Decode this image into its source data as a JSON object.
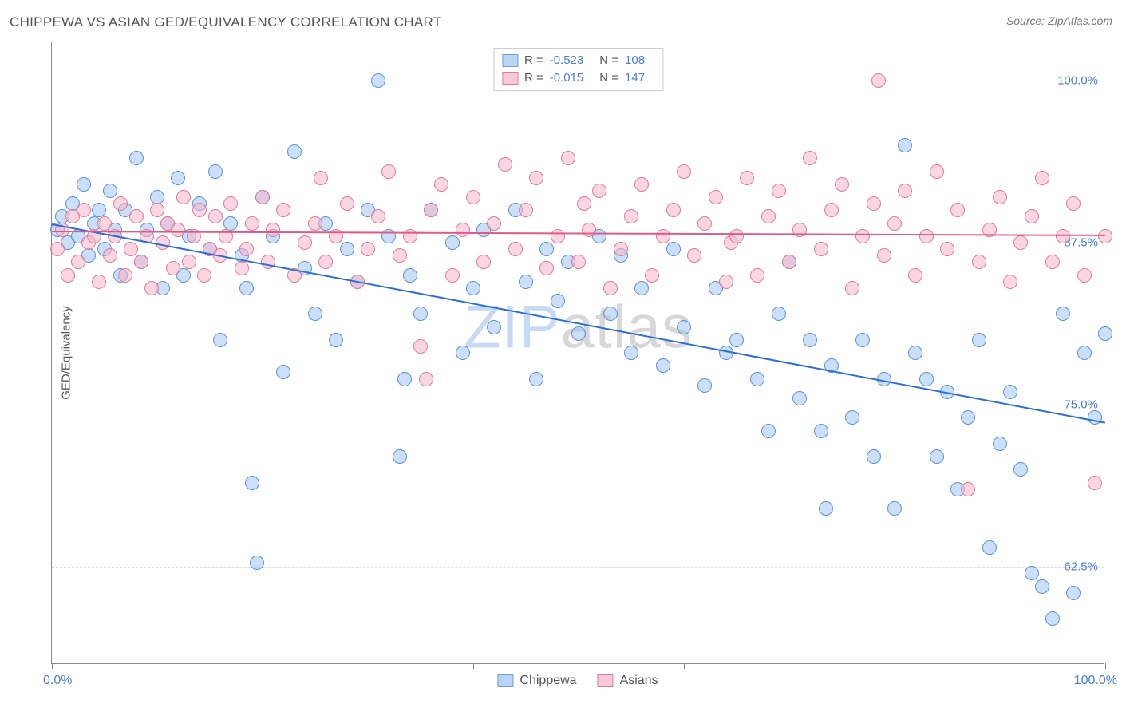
{
  "title": "CHIPPEWA VS ASIAN GED/EQUIVALENCY CORRELATION CHART",
  "source": "Source: ZipAtlas.com",
  "watermark": {
    "part1": "ZIP",
    "part2": "atlas"
  },
  "chart": {
    "type": "scatter",
    "xlim": [
      0,
      100
    ],
    "ylim": [
      55,
      103
    ],
    "x_ticks": [
      0,
      20,
      40,
      60,
      80,
      100
    ],
    "y_gridlines": [
      62.5,
      75.0,
      87.5,
      100.0
    ],
    "y_gridline_labels": [
      "62.5%",
      "75.0%",
      "87.5%",
      "100.0%"
    ],
    "x_start_label": "0.0%",
    "x_end_label": "100.0%",
    "y_axis_title": "GED/Equivalency",
    "background_color": "#ffffff",
    "grid_color": "#dddddd",
    "axis_color": "#888888",
    "tick_label_color": "#4a7fd8",
    "point_radius": 9,
    "series": [
      {
        "name": "Chippewa",
        "fill": "rgba(160,198,242,0.55)",
        "stroke": "#5a92d6",
        "swatch_fill": "#b9d4f4",
        "swatch_border": "#6c9fe0",
        "trend": {
          "x1": 0,
          "y1": 89.0,
          "x2": 100,
          "y2": 73.7,
          "color": "#2a6fd6",
          "width": 2
        },
        "R": "-0.523",
        "N": "108",
        "points": [
          [
            0.5,
            88.5
          ],
          [
            1,
            89.5
          ],
          [
            1.5,
            87.5
          ],
          [
            2,
            90.5
          ],
          [
            2.5,
            88
          ],
          [
            3,
            92
          ],
          [
            3.5,
            86.5
          ],
          [
            4,
            89
          ],
          [
            4.5,
            90
          ],
          [
            5,
            87
          ],
          [
            5.5,
            91.5
          ],
          [
            6,
            88.5
          ],
          [
            6.5,
            85
          ],
          [
            7,
            90
          ],
          [
            8,
            94
          ],
          [
            8.5,
            86
          ],
          [
            9,
            88.5
          ],
          [
            10,
            91
          ],
          [
            10.5,
            84
          ],
          [
            11,
            89
          ],
          [
            12,
            92.5
          ],
          [
            12.5,
            85
          ],
          [
            13,
            88
          ],
          [
            14,
            90.5
          ],
          [
            15,
            87
          ],
          [
            15.5,
            93
          ],
          [
            16,
            80
          ],
          [
            17,
            89
          ],
          [
            18,
            86.5
          ],
          [
            18.5,
            84
          ],
          [
            19,
            69
          ],
          [
            19.5,
            62.8
          ],
          [
            20,
            91
          ],
          [
            21,
            88
          ],
          [
            22,
            77.5
          ],
          [
            23,
            94.5
          ],
          [
            24,
            85.5
          ],
          [
            25,
            82
          ],
          [
            26,
            89
          ],
          [
            27,
            80
          ],
          [
            28,
            87
          ],
          [
            29,
            84.5
          ],
          [
            30,
            90
          ],
          [
            31,
            100
          ],
          [
            32,
            88
          ],
          [
            33,
            71
          ],
          [
            33.5,
            77
          ],
          [
            34,
            85
          ],
          [
            35,
            82
          ],
          [
            36,
            90
          ],
          [
            38,
            87.5
          ],
          [
            39,
            79
          ],
          [
            40,
            84
          ],
          [
            41,
            88.5
          ],
          [
            42,
            81
          ],
          [
            44,
            90
          ],
          [
            45,
            84.5
          ],
          [
            46,
            77
          ],
          [
            47,
            87
          ],
          [
            48,
            83
          ],
          [
            49,
            86
          ],
          [
            50,
            80.5
          ],
          [
            52,
            88
          ],
          [
            53,
            82
          ],
          [
            54,
            86.5
          ],
          [
            55,
            79
          ],
          [
            56,
            84
          ],
          [
            58,
            78
          ],
          [
            59,
            87
          ],
          [
            60,
            81
          ],
          [
            62,
            76.5
          ],
          [
            63,
            84
          ],
          [
            64,
            79
          ],
          [
            65,
            80
          ],
          [
            67,
            77
          ],
          [
            68,
            73
          ],
          [
            69,
            82
          ],
          [
            70,
            86
          ],
          [
            71,
            75.5
          ],
          [
            72,
            80
          ],
          [
            73,
            73
          ],
          [
            73.5,
            67
          ],
          [
            74,
            78
          ],
          [
            76,
            74
          ],
          [
            77,
            80
          ],
          [
            78,
            71
          ],
          [
            79,
            77
          ],
          [
            80,
            67
          ],
          [
            81,
            95
          ],
          [
            82,
            79
          ],
          [
            83,
            77
          ],
          [
            84,
            71
          ],
          [
            85,
            76
          ],
          [
            86,
            68.5
          ],
          [
            87,
            74
          ],
          [
            88,
            80
          ],
          [
            89,
            64
          ],
          [
            90,
            72
          ],
          [
            91,
            76
          ],
          [
            92,
            70
          ],
          [
            93,
            62
          ],
          [
            94,
            61
          ],
          [
            95,
            58.5
          ],
          [
            96,
            82
          ],
          [
            97,
            60.5
          ],
          [
            98,
            79
          ],
          [
            99,
            74
          ],
          [
            100,
            80.5
          ]
        ]
      },
      {
        "name": "Asians",
        "fill": "rgba(245,180,200,0.55)",
        "stroke": "#e27a9a",
        "swatch_fill": "#f7c9d7",
        "swatch_border": "#e27a9a",
        "trend": {
          "x1": 0,
          "y1": 88.4,
          "x2": 100,
          "y2": 88.1,
          "color": "#e05a88",
          "width": 2
        },
        "R": "-0.015",
        "N": "147",
        "points": [
          [
            0.5,
            87
          ],
          [
            1,
            88.5
          ],
          [
            1.5,
            85
          ],
          [
            2,
            89.5
          ],
          [
            2.5,
            86
          ],
          [
            3,
            90
          ],
          [
            3.5,
            87.5
          ],
          [
            4,
            88
          ],
          [
            4.5,
            84.5
          ],
          [
            5,
            89
          ],
          [
            5.5,
            86.5
          ],
          [
            6,
            88
          ],
          [
            6.5,
            90.5
          ],
          [
            7,
            85
          ],
          [
            7.5,
            87
          ],
          [
            8,
            89.5
          ],
          [
            8.5,
            86
          ],
          [
            9,
            88
          ],
          [
            9.5,
            84
          ],
          [
            10,
            90
          ],
          [
            10.5,
            87.5
          ],
          [
            11,
            89
          ],
          [
            11.5,
            85.5
          ],
          [
            12,
            88.5
          ],
          [
            12.5,
            91
          ],
          [
            13,
            86
          ],
          [
            13.5,
            88
          ],
          [
            14,
            90
          ],
          [
            14.5,
            85
          ],
          [
            15,
            87
          ],
          [
            15.5,
            89.5
          ],
          [
            16,
            86.5
          ],
          [
            16.5,
            88
          ],
          [
            17,
            90.5
          ],
          [
            18,
            85.5
          ],
          [
            18.5,
            87
          ],
          [
            19,
            89
          ],
          [
            20,
            91
          ],
          [
            20.5,
            86
          ],
          [
            21,
            88.5
          ],
          [
            22,
            90
          ],
          [
            23,
            85
          ],
          [
            24,
            87.5
          ],
          [
            25,
            89
          ],
          [
            25.5,
            92.5
          ],
          [
            26,
            86
          ],
          [
            27,
            88
          ],
          [
            28,
            90.5
          ],
          [
            29,
            84.5
          ],
          [
            30,
            87
          ],
          [
            31,
            89.5
          ],
          [
            32,
            93
          ],
          [
            33,
            86.5
          ],
          [
            34,
            88
          ],
          [
            35,
            79.5
          ],
          [
            35.5,
            77
          ],
          [
            36,
            90
          ],
          [
            37,
            92
          ],
          [
            38,
            85
          ],
          [
            39,
            88.5
          ],
          [
            40,
            91
          ],
          [
            41,
            86
          ],
          [
            42,
            89
          ],
          [
            43,
            93.5
          ],
          [
            44,
            87
          ],
          [
            45,
            90
          ],
          [
            46,
            92.5
          ],
          [
            47,
            85.5
          ],
          [
            48,
            88
          ],
          [
            49,
            94
          ],
          [
            50,
            86
          ],
          [
            50.5,
            90.5
          ],
          [
            51,
            88.5
          ],
          [
            52,
            91.5
          ],
          [
            53,
            84
          ],
          [
            54,
            87
          ],
          [
            55,
            89.5
          ],
          [
            56,
            92
          ],
          [
            57,
            85
          ],
          [
            58,
            88
          ],
          [
            59,
            90
          ],
          [
            60,
            93
          ],
          [
            61,
            86.5
          ],
          [
            62,
            89
          ],
          [
            63,
            91
          ],
          [
            64,
            84.5
          ],
          [
            64.5,
            87.5
          ],
          [
            65,
            88
          ],
          [
            66,
            92.5
          ],
          [
            67,
            85
          ],
          [
            68,
            89.5
          ],
          [
            69,
            91.5
          ],
          [
            70,
            86
          ],
          [
            71,
            88.5
          ],
          [
            72,
            94
          ],
          [
            73,
            87
          ],
          [
            74,
            90
          ],
          [
            75,
            92
          ],
          [
            76,
            84
          ],
          [
            77,
            88
          ],
          [
            78,
            90.5
          ],
          [
            78.5,
            100
          ],
          [
            79,
            86.5
          ],
          [
            80,
            89
          ],
          [
            81,
            91.5
          ],
          [
            82,
            85
          ],
          [
            83,
            88
          ],
          [
            84,
            93
          ],
          [
            85,
            87
          ],
          [
            86,
            90
          ],
          [
            87,
            68.5
          ],
          [
            88,
            86
          ],
          [
            89,
            88.5
          ],
          [
            90,
            91
          ],
          [
            91,
            84.5
          ],
          [
            92,
            87.5
          ],
          [
            93,
            89.5
          ],
          [
            94,
            92.5
          ],
          [
            95,
            86
          ],
          [
            96,
            88
          ],
          [
            97,
            90.5
          ],
          [
            98,
            85
          ],
          [
            99,
            69
          ],
          [
            100,
            88
          ]
        ]
      }
    ],
    "legend_bottom": [
      {
        "label": "Chippewa",
        "series_idx": 0
      },
      {
        "label": "Asians",
        "series_idx": 1
      }
    ]
  }
}
